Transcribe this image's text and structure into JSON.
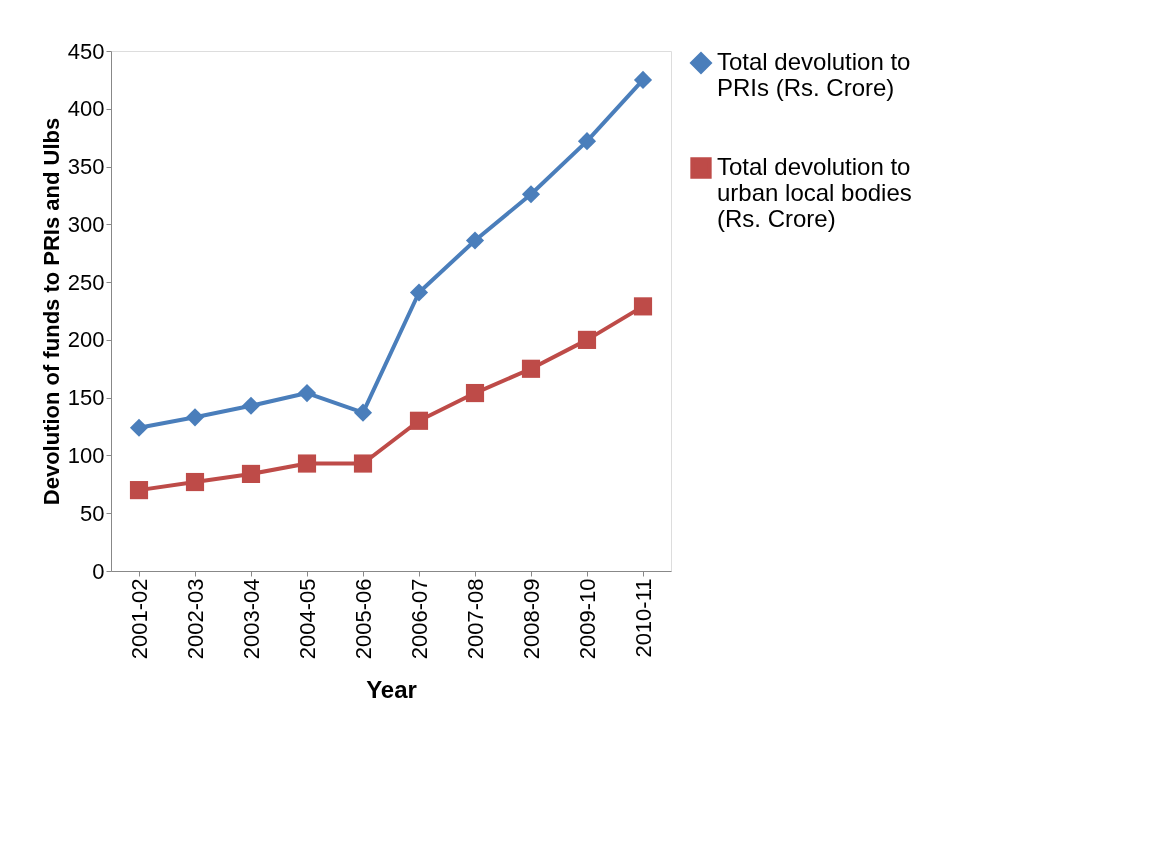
{
  "chart_data": {
    "type": "line",
    "xlabel": "Year",
    "ylabel": "Devolution of funds to PRIs and Ulbs",
    "categories": [
      "2001-02",
      "2002-03",
      "2003-04",
      "2004-05",
      "2005-06",
      "2006-07",
      "2007-08",
      "2008-09",
      "2009-10",
      "2010-11"
    ],
    "series": [
      {
        "name": "Total devolution to PRIs (Rs. Crore)",
        "color": "#4a7ebb",
        "marker": "diamond",
        "values": [
          124,
          133,
          143,
          154,
          137,
          241,
          286,
          326,
          372,
          425
        ]
      },
      {
        "name": "Total devolution to urban local bodies (Rs. Crore)",
        "color": "#be4b48",
        "marker": "square",
        "values": [
          70,
          77,
          84,
          93,
          93,
          130,
          154,
          175,
          200,
          229
        ]
      }
    ],
    "ylim": [
      0,
      450
    ],
    "yticks": [
      0,
      50,
      100,
      150,
      200,
      250,
      300,
      350,
      400,
      450
    ],
    "grid": false,
    "legend": "right",
    "line_style": "solid"
  }
}
